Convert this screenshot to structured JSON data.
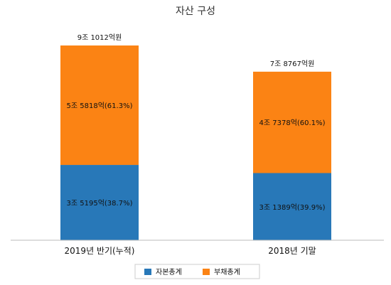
{
  "chart_data": {
    "type": "bar",
    "stacked": true,
    "title": "자산 구성",
    "categories": [
      "2019년 반기(누적)",
      "2018년 기말"
    ],
    "totals": [
      "9조 1012억원",
      "7조 8767억원"
    ],
    "total_values": [
      91012,
      78767
    ],
    "series": [
      {
        "name": "자본총계",
        "color": "#2878b8",
        "values": [
          35195,
          31389
        ],
        "labels": [
          "3조 5195억(38.7%)",
          "3조 1389억(39.9%)"
        ]
      },
      {
        "name": "부채총계",
        "color": "#fb8314",
        "values": [
          55818,
          47378
        ],
        "labels": [
          "5조 5818억(61.3%)",
          "4조 7378억(60.1%)"
        ]
      }
    ],
    "legend_position": "bottom",
    "grid": false
  }
}
